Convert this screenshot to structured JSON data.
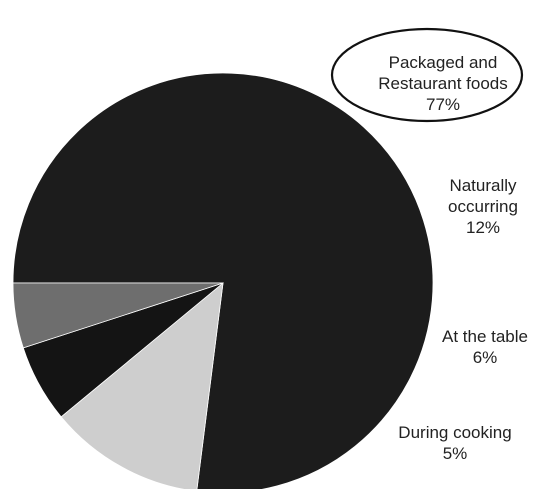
{
  "chart_data": {
    "type": "pie",
    "start_angle_deg": 180,
    "direction": "counterclockwise",
    "legend": "none",
    "slices": [
      {
        "label_lines": [
          "Packaged and",
          "Restaurant foods"
        ],
        "value": 77,
        "value_label": "77%",
        "color": "#1c1c1c",
        "callout": "ellipse"
      },
      {
        "label_lines": [
          "Naturally",
          "occurring"
        ],
        "value": 12,
        "value_label": "12%",
        "color": "#cecece"
      },
      {
        "label_lines": [
          "At the table"
        ],
        "value": 6,
        "value_label": "6%",
        "color": "#141414"
      },
      {
        "label_lines": [
          "During cooking"
        ],
        "value": 5,
        "value_label": "5%",
        "color": "#6e6e6e"
      }
    ]
  }
}
